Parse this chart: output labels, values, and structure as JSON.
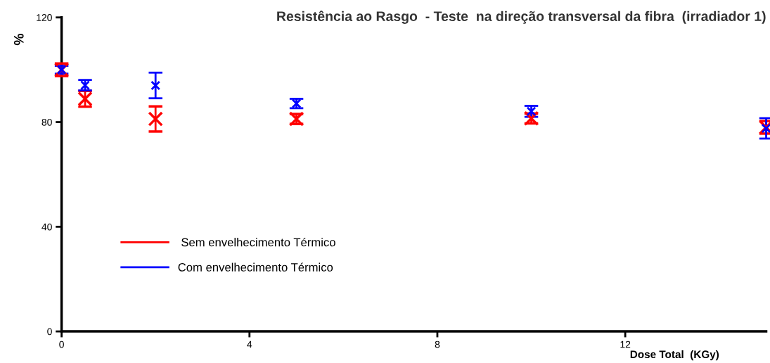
{
  "chart_data": {
    "type": "scatter",
    "title": "Resistência ao Rasgo  - Teste  na direção transversal da fibra  (irradiador 1)",
    "xlabel": "Dose Total  (KGy)",
    "ylabel": "%",
    "x": [
      0,
      0.5,
      2,
      5,
      10,
      15
    ],
    "series": [
      {
        "name": " Sem envelhecimento Térmico",
        "color": "#ff0000",
        "values": [
          100,
          88.9,
          81.2,
          81.2,
          81.4,
          78
        ],
        "errors": [
          2.4,
          3,
          4.8,
          1.9,
          1.9,
          2.4
        ]
      },
      {
        "name": "Com envelhecimento Térmico",
        "color": "#0000ff",
        "values": [
          100,
          94.1,
          94,
          87.1,
          84.1,
          77.6
        ],
        "errors": [
          1.5,
          2,
          4.9,
          1.8,
          2.1,
          3.9
        ]
      }
    ],
    "xlim": [
      0,
      15
    ],
    "ylim": [
      0,
      120
    ],
    "xticks": [
      0,
      4,
      8,
      12
    ],
    "yticks": [
      0,
      40,
      80,
      120
    ],
    "marker": "cross",
    "grid": false,
    "legend": "bottom left"
  }
}
